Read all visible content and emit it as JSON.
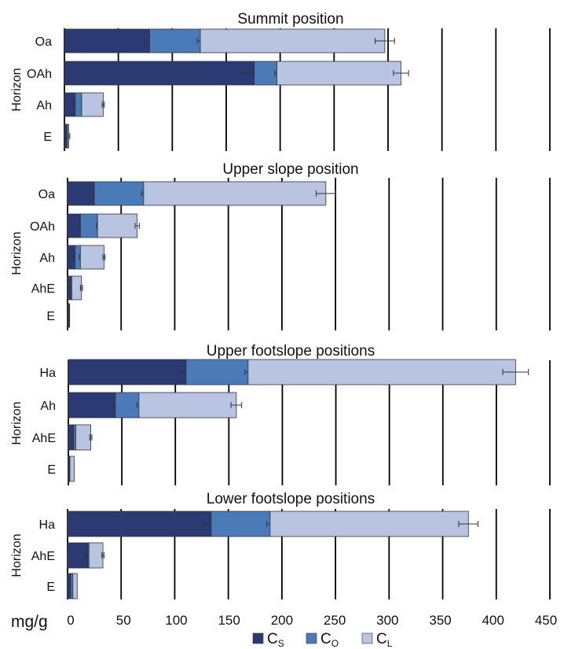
{
  "chart_data": {
    "type": "bar",
    "orientation": "horizontal",
    "stacked": true,
    "x_unit": "mg/g",
    "xlim": [
      0,
      450
    ],
    "x_ticks": [
      "0",
      "50",
      "100",
      "150",
      "200",
      "250",
      "300",
      "350",
      "400",
      "450"
    ],
    "grid": "vertical",
    "legend_position": "bottom",
    "series": [
      {
        "name": "CS",
        "label_main": "C",
        "label_sub": "S",
        "color": "#2b3a73"
      },
      {
        "name": "CO",
        "label_main": "C",
        "label_sub": "O",
        "color": "#4a7ab8"
      },
      {
        "name": "CL",
        "label_main": "C",
        "label_sub": "L",
        "color": "#b8c4e2"
      }
    ],
    "panels": [
      {
        "title": "Summit position",
        "ylabel": "Horizon",
        "categories": [
          "Oa",
          "OAh",
          "Ah",
          "E"
        ],
        "values": [
          [
            79,
            47,
            171
          ],
          [
            176,
            21,
            115
          ],
          [
            10,
            6,
            20
          ],
          [
            2,
            1,
            1
          ]
        ],
        "errors": [
          [
            5,
            3,
            9
          ],
          [
            11,
            2,
            7
          ],
          [
            1.5,
            0,
            1
          ],
          [
            0,
            0,
            1
          ]
        ]
      },
      {
        "title": "Upper slope position",
        "ylabel": "Horizon",
        "categories": [
          "Oa",
          "OAh",
          "Ah",
          "AhE",
          "E"
        ],
        "values": [
          [
            25,
            46,
            170
          ],
          [
            12,
            16,
            37
          ],
          [
            7,
            5,
            22
          ],
          [
            3,
            1,
            9
          ],
          [
            1,
            0.5,
            0.5
          ]
        ],
        "errors": [
          [
            1,
            2,
            9
          ],
          [
            1,
            1,
            2
          ],
          [
            1,
            1,
            1
          ],
          [
            1,
            0,
            1
          ],
          [
            0,
            0,
            0
          ]
        ]
      },
      {
        "title": "Upper footslope positions",
        "ylabel": "Horizon",
        "categories": [
          "Ha",
          "Ah",
          "AhE",
          "E"
        ],
        "values": [
          [
            110,
            58,
            250
          ],
          [
            44,
            22,
            91
          ],
          [
            5,
            2,
            14
          ],
          [
            1,
            0.5,
            4
          ]
        ],
        "errors": [
          [
            7,
            3,
            12
          ],
          [
            2,
            2,
            5
          ],
          [
            1,
            0,
            1
          ],
          [
            0,
            0,
            0
          ]
        ]
      },
      {
        "title": "Lower footslope positions",
        "ylabel": "Horizon",
        "categories": [
          "Ha",
          "AhE",
          "E"
        ],
        "values": [
          [
            134,
            55,
            185
          ],
          [
            19,
            1,
            13
          ],
          [
            3,
            2,
            4
          ]
        ],
        "errors": [
          [
            7,
            3,
            9
          ],
          [
            2,
            0,
            1
          ],
          [
            1,
            0,
            0
          ]
        ]
      }
    ]
  }
}
